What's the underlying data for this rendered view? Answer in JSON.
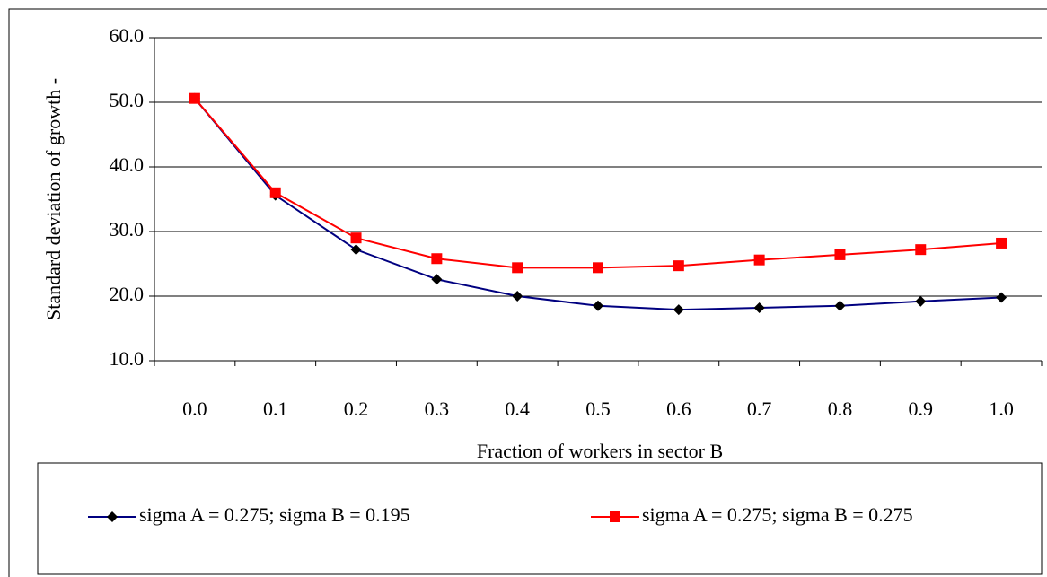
{
  "chart_data": {
    "type": "line",
    "x_label": "Fraction of workers in sector B",
    "y_label": "Standard deviation of growth -",
    "categories": [
      "0.0",
      "0.1",
      "0.2",
      "0.3",
      "0.4",
      "0.5",
      "0.6",
      "0.7",
      "0.8",
      "0.9",
      "1.0"
    ],
    "series": [
      {
        "name": "sigma A = 0.275; sigma B = 0.195",
        "color": "#000080",
        "marker_color": "#000000",
        "marker": "diamond",
        "values": [
          50.6,
          35.6,
          27.2,
          22.6,
          20.0,
          18.5,
          17.9,
          18.2,
          18.5,
          19.2,
          19.8
        ]
      },
      {
        "name": "sigma A = 0.275; sigma B = 0.275",
        "color": "#ff0000",
        "marker_color": "#ff0000",
        "marker": "square",
        "values": [
          50.6,
          36.0,
          29.0,
          25.8,
          24.4,
          24.4,
          24.7,
          25.6,
          26.4,
          27.2,
          28.2
        ]
      }
    ],
    "ylim": [
      10,
      60
    ],
    "yticks": [
      {
        "value": 10,
        "label": "10.0"
      },
      {
        "value": 20,
        "label": "20.0"
      },
      {
        "value": 30,
        "label": "30.0"
      },
      {
        "value": 40,
        "label": "40.0"
      },
      {
        "value": 50,
        "label": "50.0"
      },
      {
        "value": 60,
        "label": "60.0"
      }
    ],
    "grid": true,
    "legend": "bottom"
  }
}
